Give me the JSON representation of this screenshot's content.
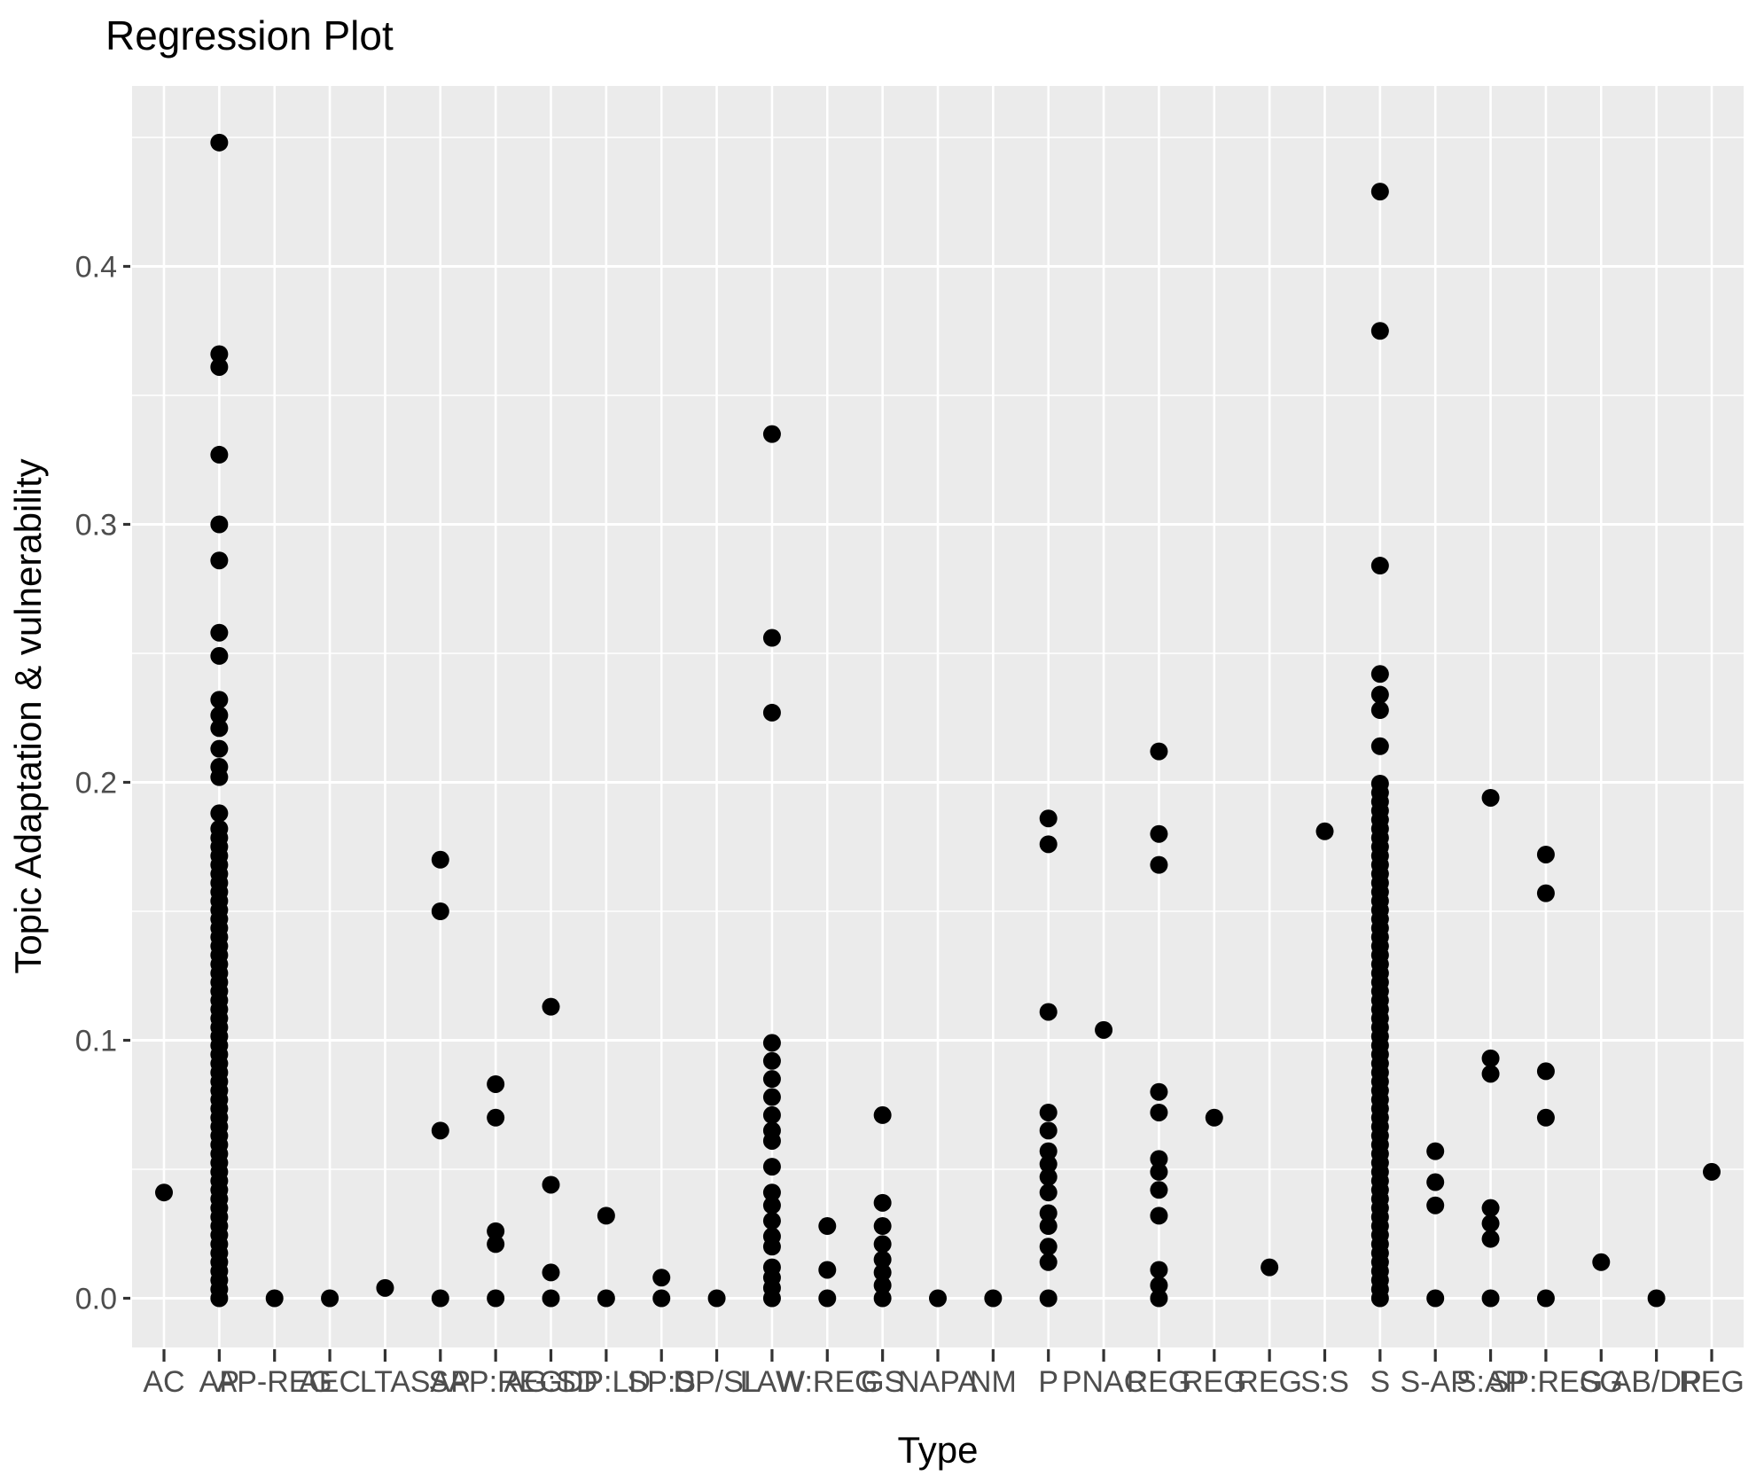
{
  "title": "Regression Plot",
  "chart_data": {
    "type": "scatter",
    "title": "Regression Plot",
    "xlabel": "Type",
    "ylabel": "Topic Adaptation & vulnerability",
    "ylim": [
      0,
      0.47
    ],
    "yticks": [
      {
        "v": 0.0,
        "label": "0.0"
      },
      {
        "v": 0.1,
        "label": "0.1"
      },
      {
        "v": 0.2,
        "label": "0.2"
      },
      {
        "v": 0.3,
        "label": "0.3"
      },
      {
        "v": 0.4,
        "label": "0.4"
      }
    ],
    "minor_gridlines": [
      0.05,
      0.15,
      0.25,
      0.35,
      0.45
    ],
    "grid": true,
    "legend": "none",
    "panel_background": "#EBEBEB",
    "gridline_color": "#FFFFFF",
    "point_color": "#000000",
    "tick_color": "#333333",
    "tick_text_color": "#4D4D4D",
    "categories": [
      {
        "label": "AC",
        "points": [
          0.041
        ]
      },
      {
        "label": "AP",
        "points": [
          0.448,
          0.366,
          0.361,
          0.327,
          0.3,
          0.286,
          0.258,
          0.249,
          0.232,
          0.226,
          0.221,
          0.213,
          0.206,
          0.202,
          0.188
        ],
        "fill": {
          "from": 0,
          "to": 0.182,
          "step": 0.0035
        }
      },
      {
        "label": "AP-REG",
        "points": [
          0
        ]
      },
      {
        "label": "AEC",
        "points": [
          0
        ]
      },
      {
        "label": "LTA",
        "points": [
          0.004
        ]
      },
      {
        "label": "SAP",
        "points": [
          0.17,
          0.15,
          0.065,
          0
        ]
      },
      {
        "label": "SAP:REG",
        "points": [
          0.083,
          0.07,
          0.026,
          0.021,
          0
        ]
      },
      {
        "label": "AG:SD",
        "points": [
          0.113,
          0.044,
          0.01,
          0
        ]
      },
      {
        "label": "DP:LD",
        "points": [
          0.032,
          0
        ]
      },
      {
        "label": "SP:S",
        "points": [
          0.008,
          0
        ]
      },
      {
        "label": "DP/SL",
        "points": [
          0
        ]
      },
      {
        "label": "LAW",
        "points": [
          0.335,
          0.256,
          0.227,
          0.099,
          0.092,
          0.085,
          0.078,
          0.071,
          0.065,
          0.061,
          0.051,
          0.041,
          0.036,
          0.03,
          0.024,
          0.02,
          0.012,
          0.008,
          0.004,
          0
        ]
      },
      {
        "label": "W:REG",
        "points": [
          0.028,
          0.011,
          0
        ]
      },
      {
        "label": "GS",
        "points": [
          0.071,
          0.037,
          0.028,
          0.021,
          0.015,
          0.01,
          0.005,
          0
        ]
      },
      {
        "label": "NAPA",
        "points": [
          0
        ]
      },
      {
        "label": "NM",
        "points": [
          0
        ]
      },
      {
        "label": "P",
        "points": [
          0.186,
          0.176,
          0.111,
          0.072,
          0.065,
          0.057,
          0.052,
          0.047,
          0.041,
          0.033,
          0.028,
          0.02,
          0.014,
          0
        ]
      },
      {
        "label": "PNAC",
        "points": [
          0.104
        ]
      },
      {
        "label": "REG",
        "points": [
          0.212,
          0.18,
          0.168,
          0.08,
          0.072,
          0.054,
          0.049,
          0.042,
          0.032,
          0.011,
          0.005,
          0
        ]
      },
      {
        "label": "REG",
        "points": [
          0.07
        ]
      },
      {
        "label": "REG",
        "points": [
          0.012
        ]
      },
      {
        "label": "S:S",
        "points": [
          0.181
        ]
      },
      {
        "label": "S",
        "points": [
          0.429,
          0.375,
          0.284,
          0.242,
          0.234,
          0.228,
          0.214
        ],
        "fill": {
          "from": 0,
          "to": 0.2,
          "step": 0.0035
        }
      },
      {
        "label": "S-AP",
        "points": [
          0.057,
          0.045,
          0.036,
          0
        ]
      },
      {
        "label": "S:AP",
        "points": [
          0.194,
          0.093,
          0.087,
          0.035,
          0.029,
          0.023,
          0
        ]
      },
      {
        "label": "SP:REG",
        "points": [
          0.172,
          0.157,
          0.088,
          0.07,
          0
        ]
      },
      {
        "label": "SG",
        "points": [
          0.014
        ]
      },
      {
        "label": "AB/DP",
        "points": [
          0
        ]
      },
      {
        "label": "REG",
        "points": [
          0.049
        ]
      }
    ]
  }
}
